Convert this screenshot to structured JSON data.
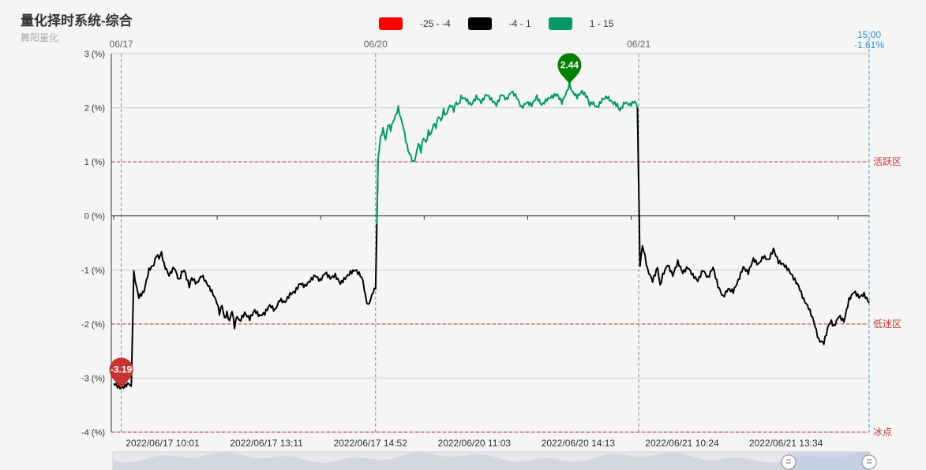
{
  "header": {
    "title": "量化择时系统-综合",
    "subtitle": "舞阳量化"
  },
  "legend": [
    {
      "label": "-25 - -4",
      "color": "#ff0000"
    },
    {
      "label": "-4 - 1",
      "color": "#000000"
    },
    {
      "label": "1 - 15",
      "color": "#009966"
    }
  ],
  "chart_data": {
    "type": "line",
    "ylim": [
      -4,
      3
    ],
    "y_ticks": [
      "3 (%)",
      "2 (%)",
      "1 (%)",
      "0 (%)",
      "-1 (%)",
      "-2 (%)",
      "-3 (%)",
      "-4 (%)"
    ],
    "y_tick_values": [
      3,
      2,
      1,
      0,
      -1,
      -2,
      -3,
      -4
    ],
    "x_ticks": [
      "2022/06/17 10:01",
      "2022/06/17 13:11",
      "2022/06/17 14:52",
      "2022/06/20 11:03",
      "2022/06/20 14:13",
      "2022/06/21 10:24",
      "2022/06/21 13:34"
    ],
    "date_markers": [
      "06/17",
      "06/20",
      "06/21"
    ],
    "zones": [
      {
        "label": "活跃区",
        "value": 1
      },
      {
        "label": "低迷区",
        "value": -2
      },
      {
        "label": "冰点",
        "value": -4
      }
    ],
    "markers": {
      "min": {
        "label": "-3.19",
        "value": -3.19,
        "color": "#c23531"
      },
      "max": {
        "label": "2.44",
        "value": 2.44,
        "color": "#008000"
      }
    },
    "crosshair": {
      "time": "15:00",
      "value": "-1.61%"
    },
    "visual_map": [
      {
        "range": [
          -25,
          -4
        ],
        "color": "#ff0000"
      },
      {
        "range": [
          -4,
          1
        ],
        "color": "#000000"
      },
      {
        "range": [
          1,
          15
        ],
        "color": "#009966"
      }
    ],
    "x_points": 288,
    "keypoints": [
      [
        0,
        -3.1
      ],
      [
        3,
        -3.19
      ],
      [
        6,
        -3.1
      ],
      [
        7,
        -3.15
      ],
      [
        8,
        -1.05
      ],
      [
        9,
        -1.3
      ],
      [
        10,
        -1.5
      ],
      [
        12,
        -1.4
      ],
      [
        14,
        -1.0
      ],
      [
        16,
        -0.9
      ],
      [
        17,
        -0.72
      ],
      [
        18,
        -0.78
      ],
      [
        19,
        -0.68
      ],
      [
        20,
        -0.9
      ],
      [
        22,
        -1.1
      ],
      [
        24,
        -0.95
      ],
      [
        26,
        -1.2
      ],
      [
        27,
        -1.05
      ],
      [
        28,
        -1.0
      ],
      [
        30,
        -1.3
      ],
      [
        31,
        -1.15
      ],
      [
        33,
        -1.25
      ],
      [
        35,
        -1.1
      ],
      [
        37,
        -1.25
      ],
      [
        39,
        -1.4
      ],
      [
        40,
        -1.5
      ],
      [
        41,
        -1.6
      ],
      [
        42,
        -1.8
      ],
      [
        43,
        -1.65
      ],
      [
        44,
        -1.9
      ],
      [
        45,
        -1.8
      ],
      [
        46,
        -1.95
      ],
      [
        47,
        -1.75
      ],
      [
        48,
        -2.05
      ],
      [
        49,
        -1.85
      ],
      [
        50,
        -1.95
      ],
      [
        52,
        -1.8
      ],
      [
        54,
        -1.9
      ],
      [
        56,
        -1.75
      ],
      [
        58,
        -1.85
      ],
      [
        60,
        -1.8
      ],
      [
        62,
        -1.65
      ],
      [
        64,
        -1.75
      ],
      [
        66,
        -1.55
      ],
      [
        68,
        -1.6
      ],
      [
        70,
        -1.45
      ],
      [
        72,
        -1.4
      ],
      [
        74,
        -1.25
      ],
      [
        76,
        -1.3
      ],
      [
        78,
        -1.2
      ],
      [
        80,
        -1.1
      ],
      [
        82,
        -1.2
      ],
      [
        84,
        -1.05
      ],
      [
        86,
        -1.15
      ],
      [
        88,
        -1.1
      ],
      [
        90,
        -1.25
      ],
      [
        92,
        -1.15
      ],
      [
        94,
        -1.05
      ],
      [
        96,
        -1.0
      ],
      [
        98,
        -1.1
      ],
      [
        99,
        -1.2
      ],
      [
        100,
        -1.5
      ],
      [
        101,
        -1.66
      ],
      [
        102,
        -1.55
      ],
      [
        103,
        -1.4
      ],
      [
        104,
        -1.35
      ],
      [
        105,
        1.05
      ],
      [
        106,
        1.45
      ],
      [
        107,
        1.6
      ],
      [
        108,
        1.4
      ],
      [
        109,
        1.7
      ],
      [
        110,
        1.6
      ],
      [
        111,
        1.75
      ],
      [
        112,
        1.85
      ],
      [
        113,
        2.0
      ],
      [
        114,
        1.8
      ],
      [
        115,
        1.65
      ],
      [
        116,
        1.4
      ],
      [
        117,
        1.2
      ],
      [
        118,
        1.1
      ],
      [
        119,
        0.98
      ],
      [
        120,
        1.1
      ],
      [
        121,
        1.35
      ],
      [
        122,
        1.2
      ],
      [
        123,
        1.45
      ],
      [
        124,
        1.35
      ],
      [
        125,
        1.55
      ],
      [
        126,
        1.5
      ],
      [
        127,
        1.7
      ],
      [
        128,
        1.65
      ],
      [
        129,
        1.85
      ],
      [
        130,
        1.75
      ],
      [
        131,
        1.95
      ],
      [
        132,
        1.85
      ],
      [
        133,
        2.0
      ],
      [
        134,
        2.05
      ],
      [
        135,
        1.95
      ],
      [
        136,
        2.1
      ],
      [
        137,
        2.05
      ],
      [
        138,
        2.2
      ],
      [
        140,
        2.15
      ],
      [
        142,
        2.05
      ],
      [
        144,
        2.2
      ],
      [
        146,
        2.1
      ],
      [
        148,
        2.25
      ],
      [
        150,
        2.15
      ],
      [
        152,
        2.05
      ],
      [
        154,
        2.25
      ],
      [
        156,
        2.15
      ],
      [
        158,
        2.3
      ],
      [
        160,
        2.2
      ],
      [
        161,
        2.1
      ],
      [
        162,
        2.0
      ],
      [
        164,
        2.1
      ],
      [
        166,
        2.05
      ],
      [
        168,
        2.2
      ],
      [
        170,
        2.05
      ],
      [
        172,
        2.15
      ],
      [
        174,
        2.2
      ],
      [
        176,
        2.25
      ],
      [
        178,
        2.1
      ],
      [
        180,
        2.3
      ],
      [
        181,
        2.44
      ],
      [
        182,
        2.3
      ],
      [
        184,
        2.2
      ],
      [
        186,
        2.3
      ],
      [
        188,
        2.2
      ],
      [
        189,
        2.05
      ],
      [
        190,
        2.1
      ],
      [
        192,
        2.0
      ],
      [
        194,
        2.15
      ],
      [
        196,
        2.2
      ],
      [
        198,
        2.1
      ],
      [
        200,
        2.05
      ],
      [
        201,
        1.95
      ],
      [
        203,
        2.1
      ],
      [
        205,
        2.05
      ],
      [
        207,
        2.12
      ],
      [
        208,
        2.0
      ],
      [
        209,
        -0.9
      ],
      [
        210,
        -0.55
      ],
      [
        211,
        -0.75
      ],
      [
        212,
        -1.0
      ],
      [
        214,
        -1.2
      ],
      [
        216,
        -0.95
      ],
      [
        217,
        -1.3
      ],
      [
        218,
        -1.1
      ],
      [
        220,
        -0.9
      ],
      [
        222,
        -1.1
      ],
      [
        224,
        -0.85
      ],
      [
        226,
        -1.05
      ],
      [
        228,
        -0.95
      ],
      [
        230,
        -1.1
      ],
      [
        232,
        -1.2
      ],
      [
        234,
        -1.0
      ],
      [
        236,
        -1.15
      ],
      [
        238,
        -0.95
      ],
      [
        240,
        -1.3
      ],
      [
        242,
        -1.5
      ],
      [
        244,
        -1.35
      ],
      [
        246,
        -1.4
      ],
      [
        248,
        -1.2
      ],
      [
        250,
        -0.95
      ],
      [
        252,
        -1.05
      ],
      [
        254,
        -0.8
      ],
      [
        256,
        -0.9
      ],
      [
        258,
        -0.75
      ],
      [
        260,
        -0.82
      ],
      [
        262,
        -0.62
      ],
      [
        264,
        -0.85
      ],
      [
        266,
        -0.9
      ],
      [
        268,
        -1.0
      ],
      [
        270,
        -1.15
      ],
      [
        272,
        -1.3
      ],
      [
        274,
        -1.55
      ],
      [
        276,
        -1.7
      ],
      [
        278,
        -1.95
      ],
      [
        280,
        -2.3
      ],
      [
        282,
        -2.35
      ],
      [
        284,
        -2.0
      ],
      [
        285,
        -1.95
      ],
      [
        286,
        -2.05
      ],
      [
        288,
        -1.85
      ],
      [
        290,
        -1.95
      ],
      [
        292,
        -1.55
      ],
      [
        294,
        -1.4
      ],
      [
        296,
        -1.5
      ],
      [
        298,
        -1.45
      ],
      [
        300,
        -1.61
      ]
    ]
  }
}
